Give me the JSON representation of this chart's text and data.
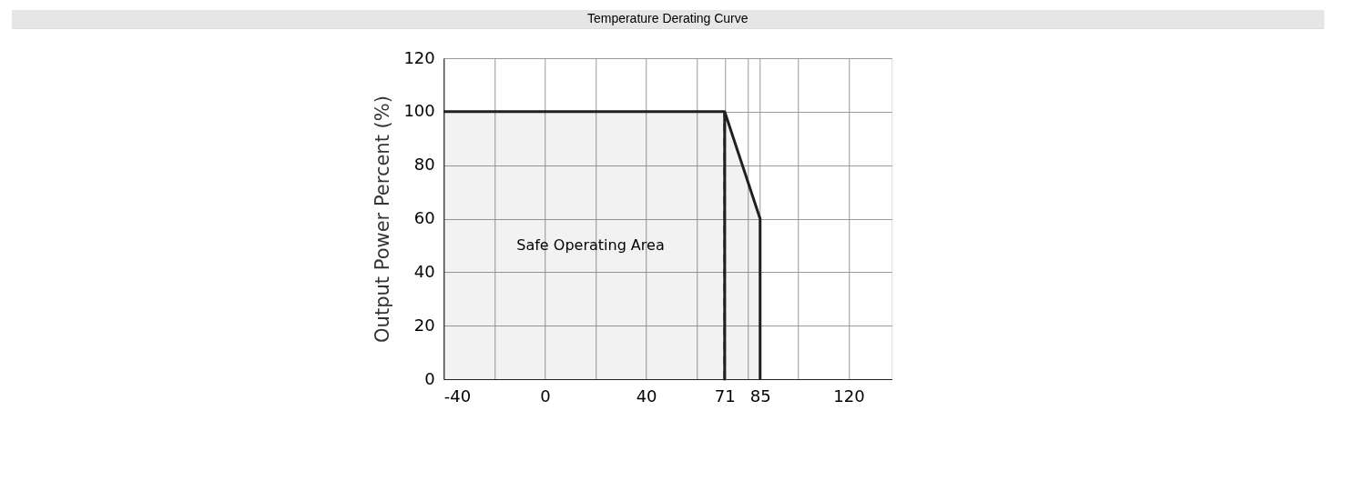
{
  "chart_data": {
    "type": "area",
    "title": "Temperature Derating Curve",
    "ylabel": "Output Power Percent (%)",
    "series": [
      {
        "color": "#231f20",
        "x": [
          -40,
          71,
          85,
          85
        ],
        "values": [
          100,
          100,
          60,
          0
        ]
      }
    ],
    "xlim": [
      -40,
      137
    ],
    "xticks": [
      -40,
      {
        "value": -20,
        "label": null
      },
      0,
      {
        "value": 20,
        "label": null
      },
      40,
      {
        "value": 60,
        "label": null
      },
      71,
      {
        "value": 80,
        "label": null
      },
      85,
      {
        "value": 100,
        "label": null
      },
      120
    ],
    "ylim": [
      0,
      120
    ],
    "yticks": [
      0,
      20,
      40,
      60,
      80,
      100,
      120
    ],
    "ref_lines": [
      {
        "axis": "x",
        "value": 71,
        "line_style": "dashed",
        "color": "#231f20"
      }
    ],
    "annotations": [
      {
        "text": "Safe Operating Area",
        "x": 18,
        "y": 50
      }
    ],
    "grid": true
  }
}
